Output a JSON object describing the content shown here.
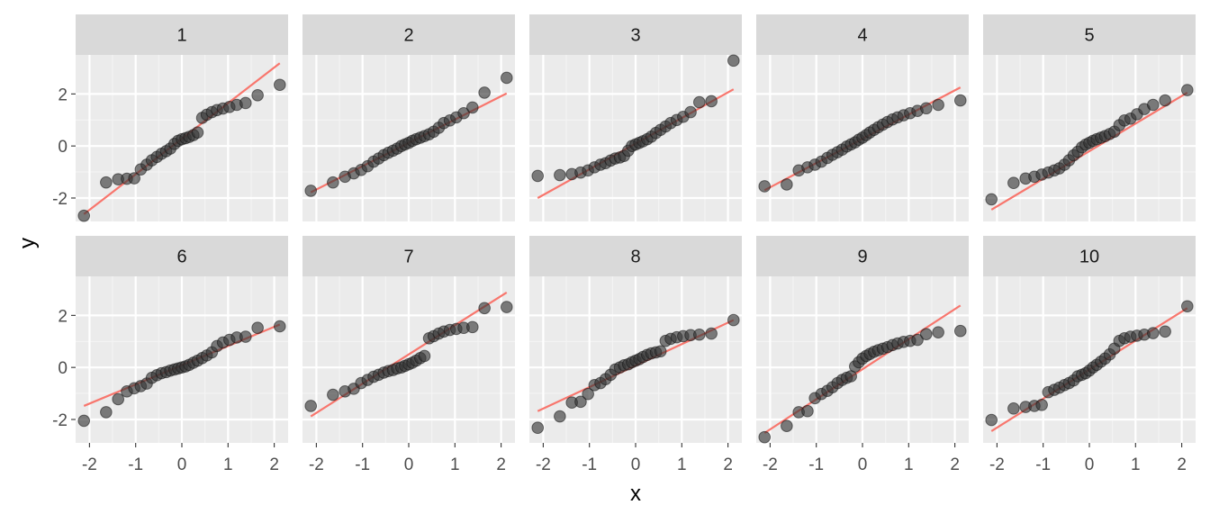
{
  "colors": {
    "panel_bg": "#EBEBEB",
    "strip_bg": "#D9D9D9",
    "grid_major": "#FFFFFF",
    "grid_minor": "#F4F4F4",
    "point": "#333333",
    "line": "#F8766D",
    "axis_text": "#4D4D4D",
    "title_text": "#000000"
  },
  "chart_data": {
    "type": "scatter",
    "layout": "faceted 2 rows x 5 columns, shared axes",
    "xlabel": "x",
    "ylabel": "y",
    "xlim": [
      -2.3,
      2.3
    ],
    "ylim": [
      -2.9,
      3.5
    ],
    "x_ticks": [
      -2,
      -1,
      0,
      1,
      2
    ],
    "x_tick_labels": [
      "-2",
      "-1",
      "0",
      "1",
      "2"
    ],
    "y_ticks": [
      -2,
      0,
      2
    ],
    "y_tick_labels": [
      "-2",
      "0",
      "2"
    ],
    "grid": true,
    "point_style": "semi-transparent dark circles",
    "quantiles": [
      -2.12,
      -1.64,
      -1.38,
      -1.19,
      -1.03,
      -0.89,
      -0.76,
      -0.65,
      -0.54,
      -0.44,
      -0.34,
      -0.25,
      -0.16,
      -0.08,
      0.0,
      0.08,
      0.16,
      0.25,
      0.34,
      0.44,
      0.54,
      0.65,
      0.76,
      0.89,
      1.03,
      1.19,
      1.38,
      1.64,
      2.12
    ],
    "panels": [
      {
        "label": "1",
        "y": [
          -2.68,
          -1.4,
          -1.28,
          -1.26,
          -1.24,
          -0.9,
          -0.72,
          -0.55,
          -0.42,
          -0.3,
          -0.2,
          -0.1,
          0.08,
          0.2,
          0.26,
          0.3,
          0.35,
          0.42,
          0.52,
          1.08,
          1.2,
          1.3,
          1.38,
          1.44,
          1.5,
          1.58,
          1.65,
          1.95,
          2.35
        ],
        "line": [
          [
            -2.12,
            -2.62
          ],
          [
            2.12,
            3.18
          ]
        ]
      },
      {
        "label": "2",
        "y": [
          -1.72,
          -1.4,
          -1.18,
          -1.05,
          -0.92,
          -0.78,
          -0.6,
          -0.48,
          -0.35,
          -0.26,
          -0.18,
          -0.1,
          0.0,
          0.06,
          0.12,
          0.2,
          0.26,
          0.32,
          0.38,
          0.45,
          0.55,
          0.7,
          0.88,
          0.98,
          1.1,
          1.26,
          1.48,
          2.05,
          2.62
        ],
        "line": [
          [
            -2.12,
            -1.78
          ],
          [
            2.12,
            2.02
          ]
        ]
      },
      {
        "label": "3",
        "y": [
          -1.15,
          -1.12,
          -1.08,
          -1.02,
          -0.94,
          -0.82,
          -0.72,
          -0.66,
          -0.56,
          -0.48,
          -0.44,
          -0.38,
          -0.18,
          0.0,
          0.06,
          0.12,
          0.18,
          0.26,
          0.36,
          0.5,
          0.62,
          0.75,
          0.88,
          1.0,
          1.12,
          1.3,
          1.68,
          1.72,
          3.28
        ],
        "line": [
          [
            -2.12,
            -2.0
          ],
          [
            2.12,
            2.18
          ]
        ]
      },
      {
        "label": "4",
        "y": [
          -1.55,
          -1.48,
          -0.94,
          -0.82,
          -0.72,
          -0.6,
          -0.46,
          -0.34,
          -0.24,
          -0.14,
          -0.02,
          0.06,
          0.14,
          0.24,
          0.32,
          0.42,
          0.52,
          0.62,
          0.72,
          0.82,
          0.92,
          1.02,
          1.1,
          1.18,
          1.26,
          1.35,
          1.45,
          1.58,
          1.75
        ],
        "line": [
          [
            -2.12,
            -1.7
          ],
          [
            2.12,
            2.25
          ]
        ]
      },
      {
        "label": "5",
        "y": [
          -2.05,
          -1.42,
          -1.25,
          -1.18,
          -1.1,
          -1.02,
          -0.94,
          -0.86,
          -0.72,
          -0.55,
          -0.36,
          -0.22,
          -0.05,
          0.05,
          0.12,
          0.2,
          0.26,
          0.32,
          0.38,
          0.46,
          0.55,
          0.8,
          0.98,
          1.05,
          1.22,
          1.42,
          1.58,
          1.75,
          2.15
        ],
        "line": [
          [
            -2.12,
            -2.45
          ],
          [
            2.12,
            2.05
          ]
        ]
      },
      {
        "label": "6",
        "y": [
          -2.05,
          -1.72,
          -1.22,
          -0.92,
          -0.8,
          -0.72,
          -0.62,
          -0.4,
          -0.3,
          -0.22,
          -0.18,
          -0.12,
          -0.08,
          -0.04,
          0.0,
          0.04,
          0.1,
          0.18,
          0.26,
          0.36,
          0.46,
          0.58,
          0.82,
          0.96,
          1.06,
          1.15,
          1.18,
          1.52,
          1.58
        ],
        "line": [
          [
            -2.12,
            -1.48
          ],
          [
            2.12,
            1.65
          ]
        ]
      },
      {
        "label": "7",
        "y": [
          -1.48,
          -1.05,
          -0.92,
          -0.82,
          -0.6,
          -0.48,
          -0.36,
          -0.28,
          -0.2,
          -0.14,
          -0.1,
          -0.04,
          0.0,
          0.06,
          0.12,
          0.18,
          0.26,
          0.36,
          0.44,
          1.12,
          1.2,
          1.3,
          1.38,
          1.44,
          1.48,
          1.52,
          1.55,
          2.28,
          2.32
        ],
        "line": [
          [
            -2.12,
            -1.88
          ],
          [
            2.12,
            2.88
          ]
        ]
      },
      {
        "label": "8",
        "y": [
          -2.32,
          -1.88,
          -1.35,
          -1.32,
          -1.02,
          -0.68,
          -0.6,
          -0.45,
          -0.28,
          -0.08,
          0.0,
          0.08,
          0.12,
          0.2,
          0.26,
          0.32,
          0.4,
          0.48,
          0.54,
          0.58,
          0.62,
          1.02,
          1.1,
          1.16,
          1.2,
          1.24,
          1.26,
          1.3,
          1.82
        ],
        "line": [
          [
            -2.12,
            -1.68
          ],
          [
            2.12,
            1.82
          ]
        ]
      },
      {
        "label": "9",
        "y": [
          -2.68,
          -2.25,
          -1.72,
          -1.68,
          -1.18,
          -1.02,
          -0.9,
          -0.76,
          -0.6,
          -0.48,
          -0.4,
          -0.34,
          0.04,
          0.2,
          0.34,
          0.44,
          0.52,
          0.6,
          0.66,
          0.72,
          0.78,
          0.86,
          0.92,
          0.98,
          1.02,
          1.06,
          1.28,
          1.35,
          1.4
        ],
        "line": [
          [
            -2.12,
            -2.52
          ],
          [
            2.12,
            2.38
          ]
        ]
      },
      {
        "label": "10",
        "y": [
          -2.02,
          -1.58,
          -1.52,
          -1.48,
          -1.44,
          -0.95,
          -0.86,
          -0.78,
          -0.68,
          -0.6,
          -0.5,
          -0.34,
          -0.28,
          -0.22,
          -0.12,
          0.0,
          0.1,
          0.22,
          0.34,
          0.5,
          0.72,
          1.02,
          1.12,
          1.18,
          1.22,
          1.26,
          1.32,
          1.38,
          2.35
        ],
        "line": [
          [
            -2.12,
            -2.45
          ],
          [
            2.12,
            2.28
          ]
        ]
      }
    ]
  }
}
